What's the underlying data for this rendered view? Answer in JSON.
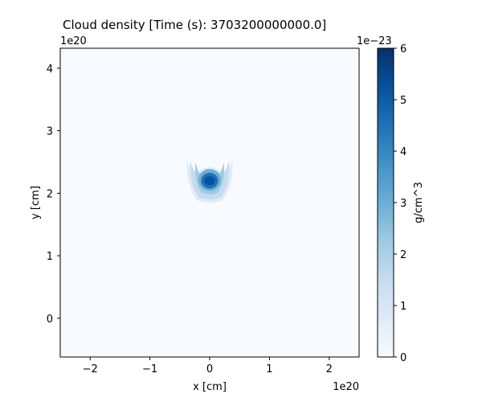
{
  "chart_data": {
    "type": "heatmap",
    "title": "Cloud density [Time (s): 3703200000000.0]",
    "xlabel": "x [cm]",
    "ylabel": "y [cm]",
    "x_offset_label": "1e20",
    "y_offset_label": "1e20",
    "xlim": [
      -2.5,
      2.5
    ],
    "ylim": [
      -0.62,
      4.32
    ],
    "x_ticks": [
      {
        "value": -2,
        "label": "−2"
      },
      {
        "value": -1,
        "label": "−1"
      },
      {
        "value": 0,
        "label": "0"
      },
      {
        "value": 1,
        "label": "1"
      },
      {
        "value": 2,
        "label": "2"
      }
    ],
    "y_ticks": [
      {
        "value": 0,
        "label": "0"
      },
      {
        "value": 1,
        "label": "1"
      },
      {
        "value": 2,
        "label": "2"
      },
      {
        "value": 3,
        "label": "3"
      },
      {
        "value": 4,
        "label": "4"
      }
    ],
    "colorbar": {
      "label": "g/cm^3",
      "offset_label": "1e−23",
      "range": [
        0,
        6
      ],
      "ticks": [
        {
          "value": 0,
          "label": "0"
        },
        {
          "value": 1,
          "label": "1"
        },
        {
          "value": 2,
          "label": "2"
        },
        {
          "value": 3,
          "label": "3"
        },
        {
          "value": 4,
          "label": "4"
        },
        {
          "value": 5,
          "label": "5"
        },
        {
          "value": 6,
          "label": "6"
        }
      ],
      "colormap": "Blues"
    },
    "cloud": {
      "center": [
        0,
        2.2
      ],
      "peak_density": 5.3,
      "core_radius": [
        0.15,
        0.12
      ],
      "arm_extent_x": [
        -0.38,
        0.38
      ],
      "arm_top_y": 2.55
    }
  }
}
